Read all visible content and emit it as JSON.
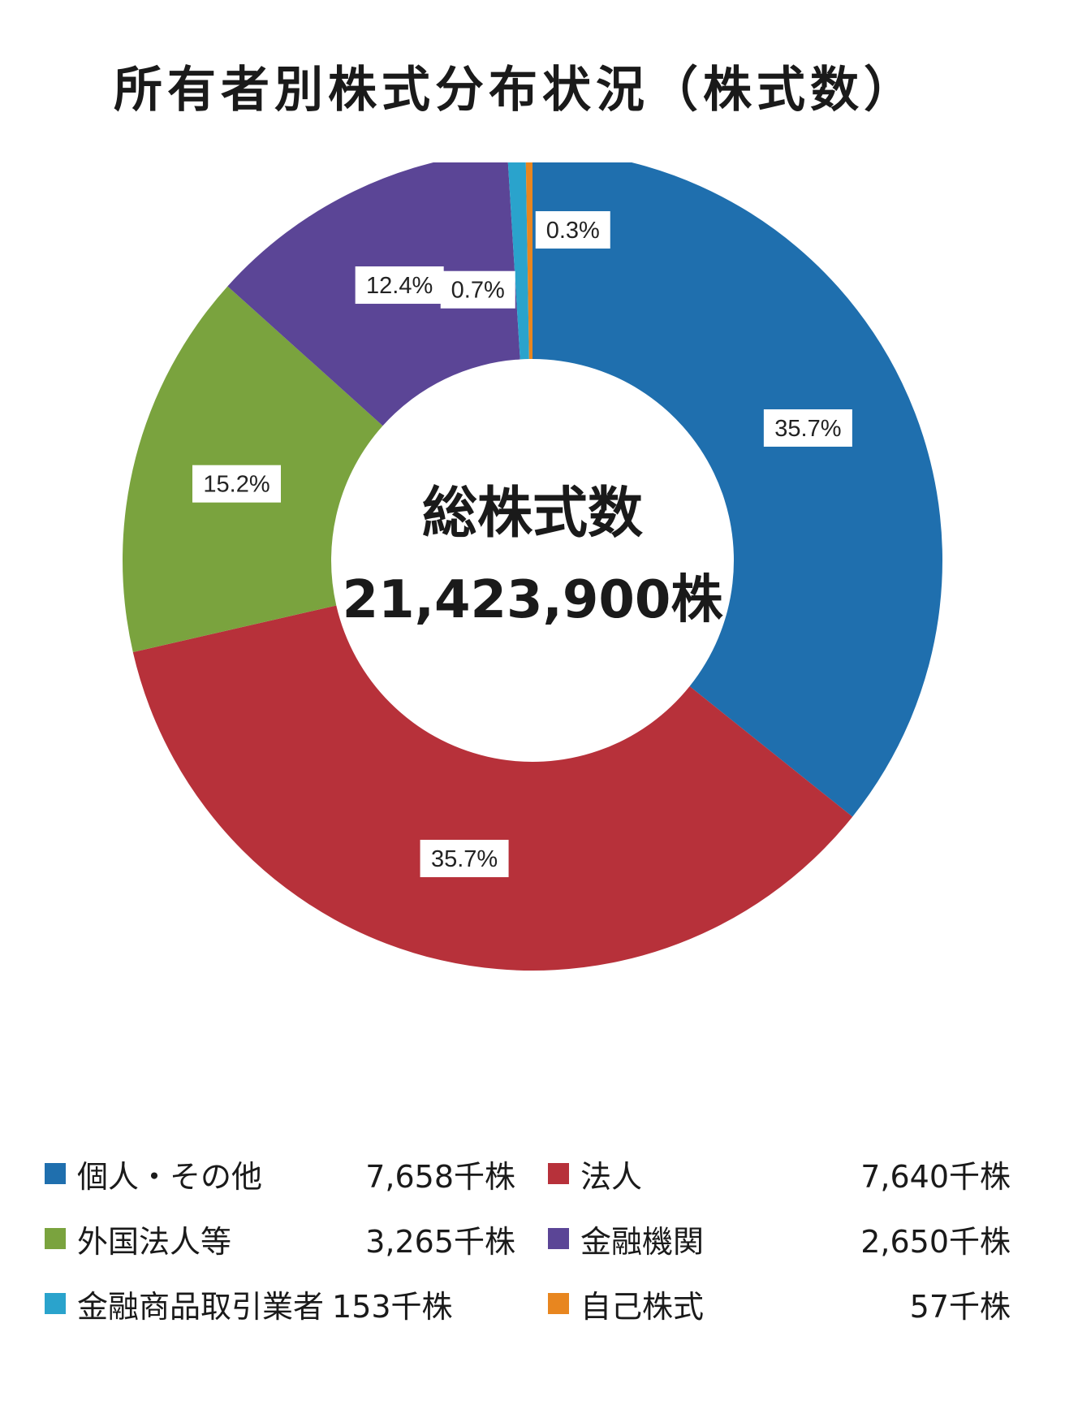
{
  "title": "所有者別株式分布状況（株式数）",
  "chart_data": {
    "type": "pie",
    "variant": "donut",
    "title": "所有者別株式分布状況（株式数）",
    "center_label": "総株式数",
    "center_value": "21,423,900株",
    "slices": [
      {
        "name": "個人・その他",
        "value": 7658,
        "value_label": "7,658千株",
        "percent": 35.7,
        "percent_label": "35.7%",
        "color": "#1f6fae"
      },
      {
        "name": "法人",
        "value": 7640,
        "value_label": "7,640千株",
        "percent": 35.7,
        "percent_label": "35.7%",
        "color": "#b7313a"
      },
      {
        "name": "外国法人等",
        "value": 3265,
        "value_label": "3,265千株",
        "percent": 15.2,
        "percent_label": "15.2%",
        "color": "#7aa33e"
      },
      {
        "name": "金融機関",
        "value": 2650,
        "value_label": "2,650千株",
        "percent": 12.4,
        "percent_label": "12.4%",
        "color": "#5b4596"
      },
      {
        "name": "金融商品取引業者",
        "value": 153,
        "value_label": "153千株",
        "percent": 0.7,
        "percent_label": "0.7%",
        "color": "#2aa3cc"
      },
      {
        "name": "自己株式",
        "value": 57,
        "value_label": "57千株",
        "percent": 0.3,
        "percent_label": "0.3%",
        "color": "#e8861f"
      }
    ],
    "direction": "clockwise",
    "start": "top",
    "legend_position": "bottom"
  }
}
